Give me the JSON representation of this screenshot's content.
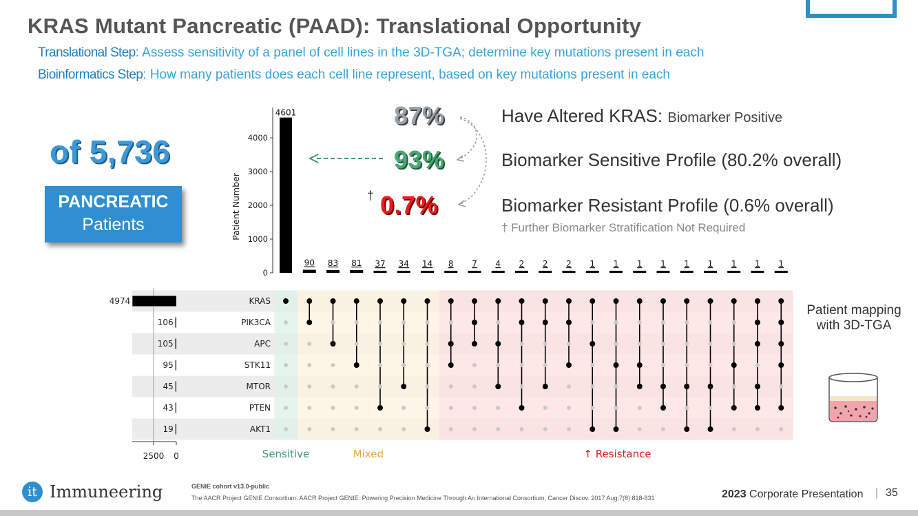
{
  "title": "KRAS Mutant Pancreatic (PAAD): Translational Opportunity",
  "steps": [
    {
      "label": "Translational Step",
      "text": ": Assess sensitivity of a panel of cell lines in the 3D-TGA; determine key mutations present in each"
    },
    {
      "label": "Bioinformatics Step",
      "text": ": How many patients does each cell line represent, based on key mutations present in each"
    }
  ],
  "total_patients": "of 5,736",
  "pancreatic_box": {
    "line1": "PANCREATIC",
    "line2": "Patients"
  },
  "percentages": {
    "altered": "87%",
    "sensitive": "93%",
    "resistant": "0.7%",
    "dagger": "†"
  },
  "statements": {
    "altered_main": "Have Altered KRAS:",
    "altered_sub": "Biomarker Positive",
    "sensitive": "Biomarker Sensitive Profile (80.2% overall)",
    "resistant": "Biomarker Resistant Profile (0.6% overall)",
    "footnote": "† Further Biomarker Stratification Not Required"
  },
  "side_caption": "Patient mapping with 3D-TGA",
  "colors": {
    "accent_blue": "#2e8fcc",
    "sensitive": "#3f9a6a",
    "mixed": "#e8a93a",
    "resistance": "#cc2222"
  },
  "chart_data": {
    "type": "bar",
    "ylabel": "Patient Number",
    "ylim": [
      0,
      4900
    ],
    "yticks": [
      0,
      1000,
      2000,
      3000,
      4000
    ],
    "intersections": [
      {
        "value": 4601,
        "genes": [
          "KRAS"
        ]
      },
      {
        "value": 90,
        "genes": [
          "KRAS",
          "PIK3CA"
        ]
      },
      {
        "value": 83,
        "genes": [
          "KRAS",
          "APC"
        ]
      },
      {
        "value": 81,
        "genes": [
          "KRAS",
          "STK11"
        ]
      },
      {
        "value": 37,
        "genes": [
          "KRAS",
          "PTEN"
        ]
      },
      {
        "value": 34,
        "genes": [
          "KRAS",
          "MTOR"
        ]
      },
      {
        "value": 14,
        "genes": [
          "KRAS",
          "AKT1"
        ]
      },
      {
        "value": 8,
        "genes": [
          "KRAS",
          "APC",
          "STK11"
        ]
      },
      {
        "value": 7,
        "genes": [
          "KRAS",
          "PIK3CA",
          "APC"
        ]
      },
      {
        "value": 4,
        "genes": [
          "KRAS",
          "APC",
          "MTOR"
        ]
      },
      {
        "value": 2,
        "genes": [
          "KRAS",
          "PIK3CA",
          "PTEN"
        ]
      },
      {
        "value": 2,
        "genes": [
          "KRAS",
          "PIK3CA",
          "MTOR"
        ]
      },
      {
        "value": 2,
        "genes": [
          "KRAS",
          "PIK3CA",
          "STK11"
        ]
      },
      {
        "value": 1,
        "genes": [
          "KRAS",
          "APC",
          "AKT1"
        ]
      },
      {
        "value": 1,
        "genes": [
          "KRAS",
          "STK11",
          "AKT1"
        ]
      },
      {
        "value": 1,
        "genes": [
          "KRAS",
          "STK11",
          "MTOR"
        ]
      },
      {
        "value": 1,
        "genes": [
          "KRAS",
          "MTOR",
          "PTEN"
        ]
      },
      {
        "value": 1,
        "genes": [
          "KRAS",
          "MTOR",
          "AKT1"
        ]
      },
      {
        "value": 1,
        "genes": [
          "KRAS",
          "MTOR",
          "AKT1"
        ]
      },
      {
        "value": 1,
        "genes": [
          "KRAS",
          "STK11",
          "PTEN"
        ]
      },
      {
        "value": 1,
        "genes": [
          "KRAS",
          "PIK3CA",
          "APC",
          "MTOR",
          "PTEN"
        ]
      },
      {
        "value": 1,
        "genes": [
          "KRAS",
          "PIK3CA",
          "APC",
          "STK11",
          "PTEN"
        ]
      }
    ],
    "genes": [
      "KRAS",
      "PIK3CA",
      "APC",
      "STK11",
      "MTOR",
      "PTEN",
      "AKT1"
    ],
    "set_sizes": [
      4974,
      106,
      105,
      95,
      45,
      43,
      19
    ],
    "set_size_ticks": [
      "2500",
      "0"
    ],
    "set_size_xlim": [
      0,
      5000
    ],
    "groups": [
      {
        "label": "Sensitive",
        "first": 0,
        "last": 0
      },
      {
        "label": "Mixed",
        "first": 1,
        "last": 6
      },
      {
        "label": "↑ Resistance",
        "first": 7,
        "last": 21
      }
    ]
  },
  "footer": {
    "logo_glyph": "it",
    "company": "Immuneering",
    "cohort": "GENIE cohort v13.0-public",
    "citation": "The AACR Project GENIE Consortium. AACR Project GENIE: Powering Precision Medicine Through An International Consortium, Cancer Discov. 2017 Aug;7(8):818-831",
    "year": "2023",
    "presentation": "Corporate Presentation",
    "separator": "|",
    "page": "35"
  }
}
